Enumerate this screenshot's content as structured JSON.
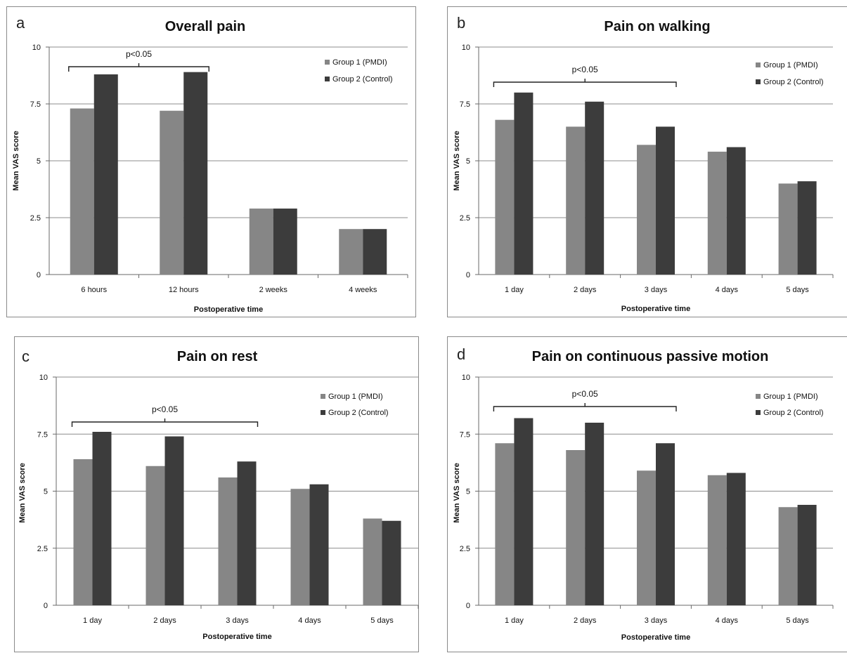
{
  "colors": {
    "group1": "#868686",
    "group2": "#3c3c3c",
    "grid": "#8c8c8c",
    "axis": "#6a6a6a"
  },
  "chart_data": [
    {
      "panel_label": "a",
      "type": "bar",
      "title": "Overall pain",
      "xlabel": "Postoperative time",
      "ylabel": "Mean VAS score",
      "ylim": [
        0,
        10
      ],
      "yticks": [
        "0",
        "2.5",
        "5",
        "7.5",
        "10"
      ],
      "categories": [
        "6 hours",
        "12 hours",
        "2 weeks",
        "4 weeks"
      ],
      "series": [
        {
          "name": "Group 1 (PMDI)",
          "values": [
            7.3,
            7.2,
            2.9,
            2.0
          ]
        },
        {
          "name": "Group 2 (Control)",
          "values": [
            8.8,
            8.9,
            2.9,
            2.0
          ]
        }
      ],
      "annotation": {
        "text": "p<0.05",
        "from": 0,
        "to": 1
      },
      "legend": "top-right",
      "grid": true
    },
    {
      "panel_label": "b",
      "type": "bar",
      "title": "Pain on walking",
      "xlabel": "Postoperative time",
      "ylabel": "Mean VAS score",
      "ylim": [
        0,
        10
      ],
      "yticks": [
        "0",
        "2.5",
        "5",
        "7.5",
        "10"
      ],
      "categories": [
        "1 day",
        "2 days",
        "3 days",
        "4 days",
        "5 days"
      ],
      "series": [
        {
          "name": "Group 1 (PMDI)",
          "values": [
            6.8,
            6.5,
            5.7,
            5.4,
            4.0
          ]
        },
        {
          "name": "Group 2 (Control)",
          "values": [
            8.0,
            7.6,
            6.5,
            5.6,
            4.1
          ]
        }
      ],
      "annotation": {
        "text": "p<0.05",
        "from": 0,
        "to": 2
      },
      "legend": "top-right",
      "grid": true
    },
    {
      "panel_label": "c",
      "type": "bar",
      "title": "Pain on rest",
      "xlabel": "Postoperative time",
      "ylabel": "Mean VAS score",
      "ylim": [
        0,
        10
      ],
      "yticks": [
        "0",
        "2.5",
        "5",
        "7.5",
        "10"
      ],
      "categories": [
        "1 day",
        "2 days",
        "3 days",
        "4 days",
        "5 days"
      ],
      "series": [
        {
          "name": "Group 1 (PMDI)",
          "values": [
            6.4,
            6.1,
            5.6,
            5.1,
            3.8
          ]
        },
        {
          "name": "Group 2 (Control)",
          "values": [
            7.6,
            7.4,
            6.3,
            5.3,
            3.7
          ]
        }
      ],
      "annotation": {
        "text": "p<0.05",
        "from": 0,
        "to": 2
      },
      "legend": "top-right",
      "grid": true
    },
    {
      "panel_label": "d",
      "type": "bar",
      "title": "Pain on continuous passive motion",
      "xlabel": "Postoperative time",
      "ylabel": "Mean VAS score",
      "ylim": [
        0,
        10
      ],
      "yticks": [
        "0",
        "2.5",
        "5",
        "7.5",
        "10"
      ],
      "categories": [
        "1 day",
        "2 days",
        "3 days",
        "4 days",
        "5 days"
      ],
      "series": [
        {
          "name": "Group 1 (PMDI)",
          "values": [
            7.1,
            6.8,
            5.9,
            5.7,
            4.3
          ]
        },
        {
          "name": "Group 2 (Control)",
          "values": [
            8.2,
            8.0,
            7.1,
            5.8,
            4.4
          ]
        }
      ],
      "annotation": {
        "text": "p<0.05",
        "from": 0,
        "to": 2
      },
      "legend": "top-right",
      "grid": true
    }
  ]
}
